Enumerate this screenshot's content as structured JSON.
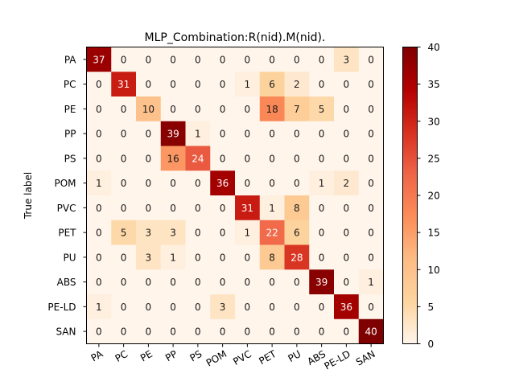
{
  "chart_data": {
    "type": "heatmap",
    "title": "MLP_Combination:R(nid).M(nid).",
    "xlabel": "",
    "ylabel": "True label",
    "labels": [
      "PA",
      "PC",
      "PE",
      "PP",
      "PS",
      "POM",
      "PVC",
      "PET",
      "PU",
      "ABS",
      "PE-LD",
      "SAN"
    ],
    "matrix": [
      [
        37,
        0,
        0,
        0,
        0,
        0,
        0,
        0,
        0,
        0,
        3,
        0
      ],
      [
        0,
        31,
        0,
        0,
        0,
        0,
        1,
        6,
        2,
        0,
        0,
        0
      ],
      [
        0,
        0,
        10,
        0,
        0,
        0,
        0,
        18,
        7,
        5,
        0,
        0
      ],
      [
        0,
        0,
        0,
        39,
        1,
        0,
        0,
        0,
        0,
        0,
        0,
        0
      ],
      [
        0,
        0,
        0,
        16,
        24,
        0,
        0,
        0,
        0,
        0,
        0,
        0
      ],
      [
        1,
        0,
        0,
        0,
        0,
        36,
        0,
        0,
        0,
        1,
        2,
        0
      ],
      [
        0,
        0,
        0,
        0,
        0,
        0,
        31,
        1,
        8,
        0,
        0,
        0
      ],
      [
        0,
        5,
        3,
        3,
        0,
        0,
        1,
        22,
        6,
        0,
        0,
        0
      ],
      [
        0,
        0,
        3,
        1,
        0,
        0,
        0,
        8,
        28,
        0,
        0,
        0
      ],
      [
        0,
        0,
        0,
        0,
        0,
        0,
        0,
        0,
        0,
        39,
        0,
        1
      ],
      [
        1,
        0,
        0,
        0,
        0,
        3,
        0,
        0,
        0,
        0,
        36,
        0
      ],
      [
        0,
        0,
        0,
        0,
        0,
        0,
        0,
        0,
        0,
        0,
        0,
        40
      ]
    ],
    "colorbar": {
      "range": [
        0,
        40
      ],
      "ticks": [
        0,
        5,
        10,
        15,
        20,
        25,
        30,
        35,
        40
      ],
      "colormap": "OrRd-like (OrRd)",
      "colors": [
        "#fff5eb",
        "#fdd49e",
        "#fdbb84",
        "#fc8d59",
        "#ef6548",
        "#d7301f",
        "#b30000",
        "#7f0000"
      ]
    },
    "grid": false
  }
}
